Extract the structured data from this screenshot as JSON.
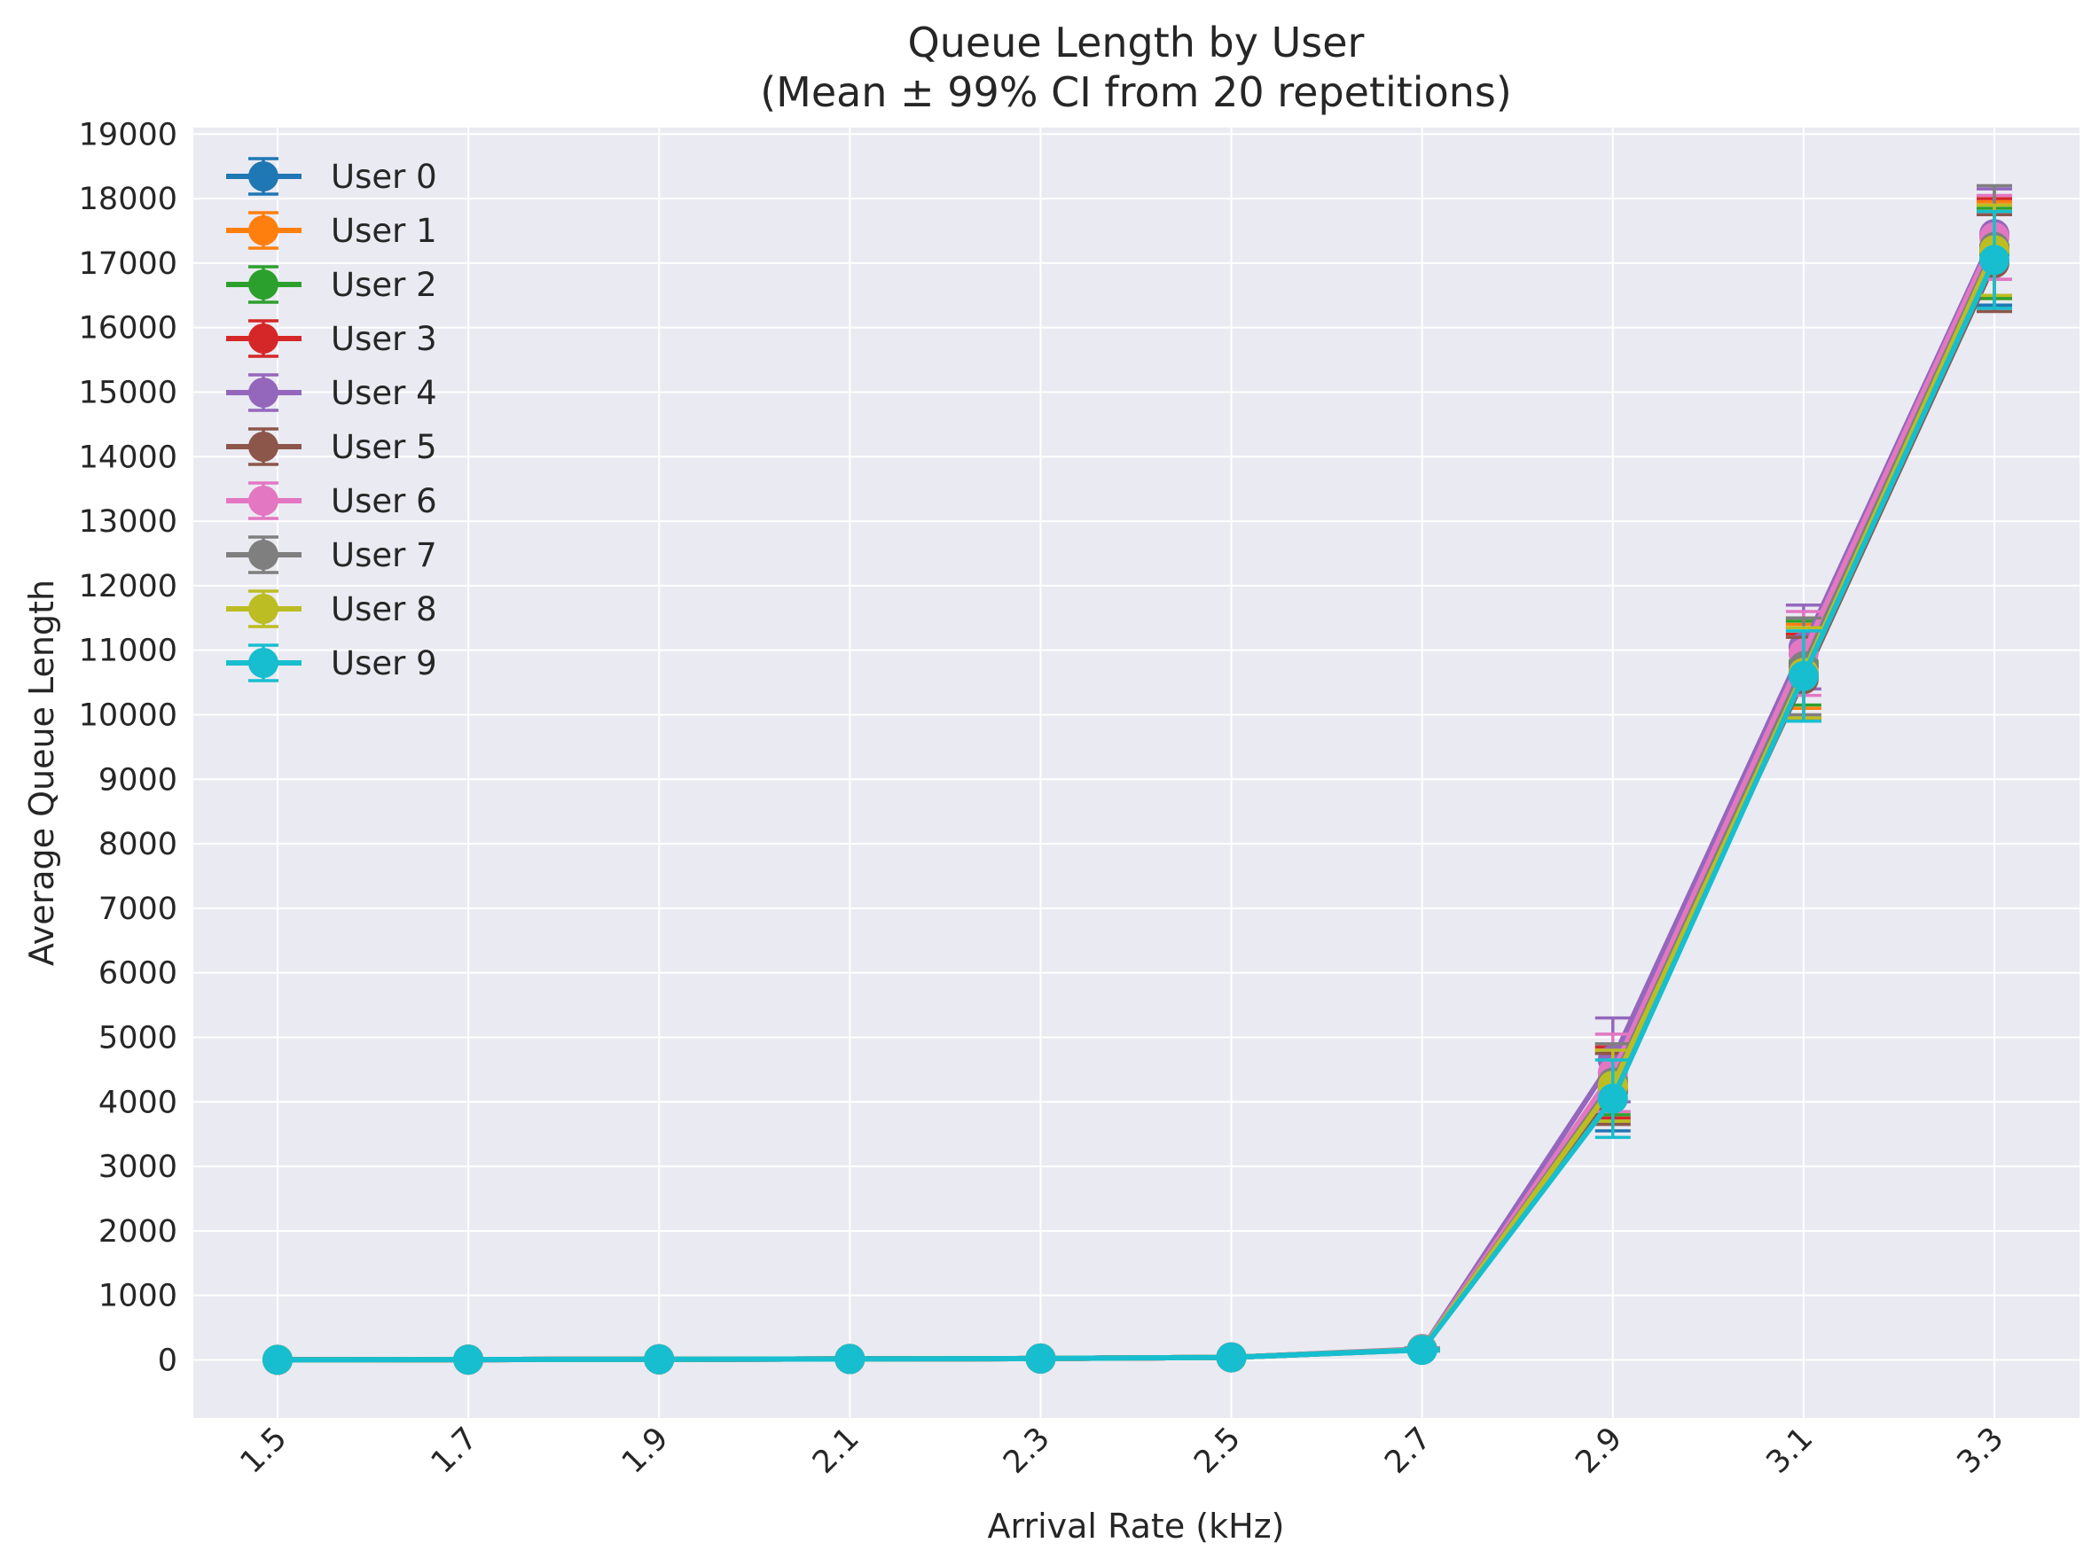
{
  "chart_data": {
    "type": "line",
    "title": "Queue Length by User",
    "subtitle": "(Mean ± 99% CI from 20 repetitions)",
    "xlabel": "Arrival Rate (kHz)",
    "ylabel": "Average Queue Length",
    "x": [
      "1.5",
      "1.7",
      "1.9",
      "2.1",
      "2.3",
      "2.5",
      "2.7",
      "2.9",
      "3.1",
      "3.3"
    ],
    "yticks": [
      "0",
      "1000",
      "2000",
      "3000",
      "4000",
      "5000",
      "6000",
      "7000",
      "8000",
      "9000",
      "10000",
      "11000",
      "12000",
      "13000",
      "14000",
      "15000",
      "16000",
      "17000",
      "18000",
      "19000"
    ],
    "ylim": [
      -900,
      19100
    ],
    "grid": true,
    "legend_position": "top-left",
    "series": [
      {
        "name": "User 0",
        "color": "#1f77b4",
        "values": [
          2,
          5,
          10,
          15,
          22,
          40,
          160,
          4150,
          10650,
          17150
        ],
        "ci": [
          0,
          0,
          0,
          0,
          0,
          8,
          20,
          600,
          700,
          800
        ]
      },
      {
        "name": "User 1",
        "color": "#ff7f0e",
        "values": [
          2,
          5,
          10,
          15,
          22,
          40,
          160,
          4250,
          10750,
          17200
        ],
        "ci": [
          0,
          0,
          0,
          0,
          0,
          8,
          20,
          550,
          650,
          750
        ]
      },
      {
        "name": "User 2",
        "color": "#2ca02c",
        "values": [
          2,
          5,
          10,
          15,
          22,
          40,
          160,
          4350,
          10800,
          17150
        ],
        "ci": [
          0,
          0,
          0,
          0,
          0,
          8,
          20,
          550,
          650,
          700
        ]
      },
      {
        "name": "User 3",
        "color": "#d62728",
        "values": [
          2,
          5,
          10,
          15,
          22,
          40,
          160,
          4300,
          10600,
          17250
        ],
        "ci": [
          0,
          0,
          0,
          0,
          0,
          8,
          20,
          550,
          650,
          750
        ]
      },
      {
        "name": "User 4",
        "color": "#9467bd",
        "values": [
          2,
          5,
          10,
          15,
          22,
          40,
          170,
          4650,
          11050,
          17450
        ],
        "ci": [
          0,
          0,
          0,
          0,
          0,
          8,
          20,
          650,
          650,
          700
        ]
      },
      {
        "name": "User 5",
        "color": "#8c564b",
        "values": [
          2,
          5,
          10,
          15,
          22,
          40,
          160,
          4200,
          10550,
          17000
        ],
        "ci": [
          0,
          0,
          0,
          0,
          0,
          8,
          20,
          550,
          650,
          750
        ]
      },
      {
        "name": "User 6",
        "color": "#e377c2",
        "values": [
          2,
          5,
          10,
          15,
          22,
          40,
          165,
          4450,
          10950,
          17400
        ],
        "ci": [
          0,
          0,
          0,
          0,
          0,
          8,
          20,
          600,
          650,
          650
        ]
      },
      {
        "name": "User 7",
        "color": "#7f7f7f",
        "values": [
          2,
          5,
          10,
          15,
          22,
          40,
          160,
          4300,
          10750,
          17250
        ],
        "ci": [
          0,
          0,
          0,
          0,
          0,
          8,
          20,
          600,
          750,
          950
        ]
      },
      {
        "name": "User 8",
        "color": "#bcbd22",
        "values": [
          2,
          5,
          10,
          15,
          22,
          40,
          160,
          4250,
          10650,
          17200
        ],
        "ci": [
          0,
          0,
          0,
          0,
          0,
          8,
          20,
          550,
          700,
          700
        ]
      },
      {
        "name": "User 9",
        "color": "#17becf",
        "values": [
          2,
          5,
          10,
          15,
          22,
          40,
          155,
          4050,
          10600,
          17050
        ],
        "ci": [
          0,
          0,
          0,
          0,
          0,
          8,
          20,
          600,
          700,
          750
        ]
      }
    ]
  }
}
